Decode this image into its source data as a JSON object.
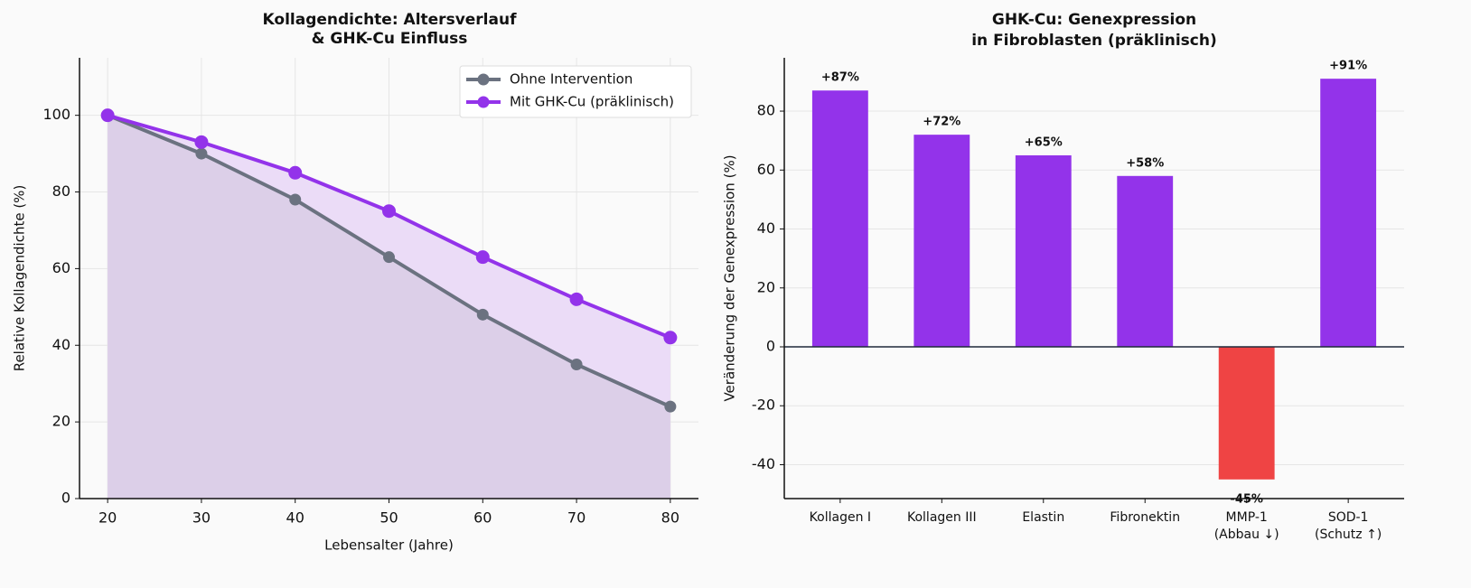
{
  "chart_data": [
    {
      "type": "line",
      "title": "Kollagendichte: Altersverlauf\n& GHK-Cu Einfluss",
      "x_label": "Lebensalter (Jahre)",
      "y_label": "Relative Kollagendichte (%)",
      "x": [
        20,
        30,
        40,
        50,
        60,
        70,
        80
      ],
      "series": [
        {
          "name": "Ohne Intervention",
          "color": "#6b7280",
          "fill": "#dccfe8",
          "values": [
            100,
            90,
            78,
            63,
            48,
            35,
            24
          ]
        },
        {
          "name": "Mit GHK-Cu (präklinisch)",
          "color": "#9333ea",
          "fill": "#ebdcf7",
          "values": [
            100,
            93,
            85,
            75,
            63,
            52,
            42
          ]
        }
      ],
      "xlim": [
        17,
        83
      ],
      "xticks": [
        20,
        30,
        40,
        50,
        60,
        70,
        80
      ],
      "ylim": [
        0,
        115
      ],
      "yticks": [
        0,
        20,
        40,
        60,
        80,
        100
      ],
      "grid": true,
      "legend": "upper right"
    },
    {
      "type": "bar",
      "title": "GHK-Cu: Genexpression\nin Fibroblasten (präklinisch)",
      "y_label": "Veränderung der Genexpression (%)",
      "categories": [
        "Kollagen I",
        "Kollagen III",
        "Elastin",
        "Fibronektin",
        "MMP-1\n(Abbau ↓)",
        "SOD-1\n(Schutz ↑)"
      ],
      "values": [
        87,
        72,
        65,
        58,
        -45,
        91
      ],
      "value_labels": [
        "+87%",
        "+72%",
        "+65%",
        "+58%",
        "-45%",
        "+91%"
      ],
      "colors": [
        "#9333ea",
        "#9333ea",
        "#9333ea",
        "#9333ea",
        "#ef4444",
        "#9333ea"
      ],
      "ylim": [
        -51.5,
        98.1
      ],
      "yticks": [
        -40,
        -20,
        0,
        20,
        40,
        60,
        80
      ],
      "grid": true
    }
  ]
}
